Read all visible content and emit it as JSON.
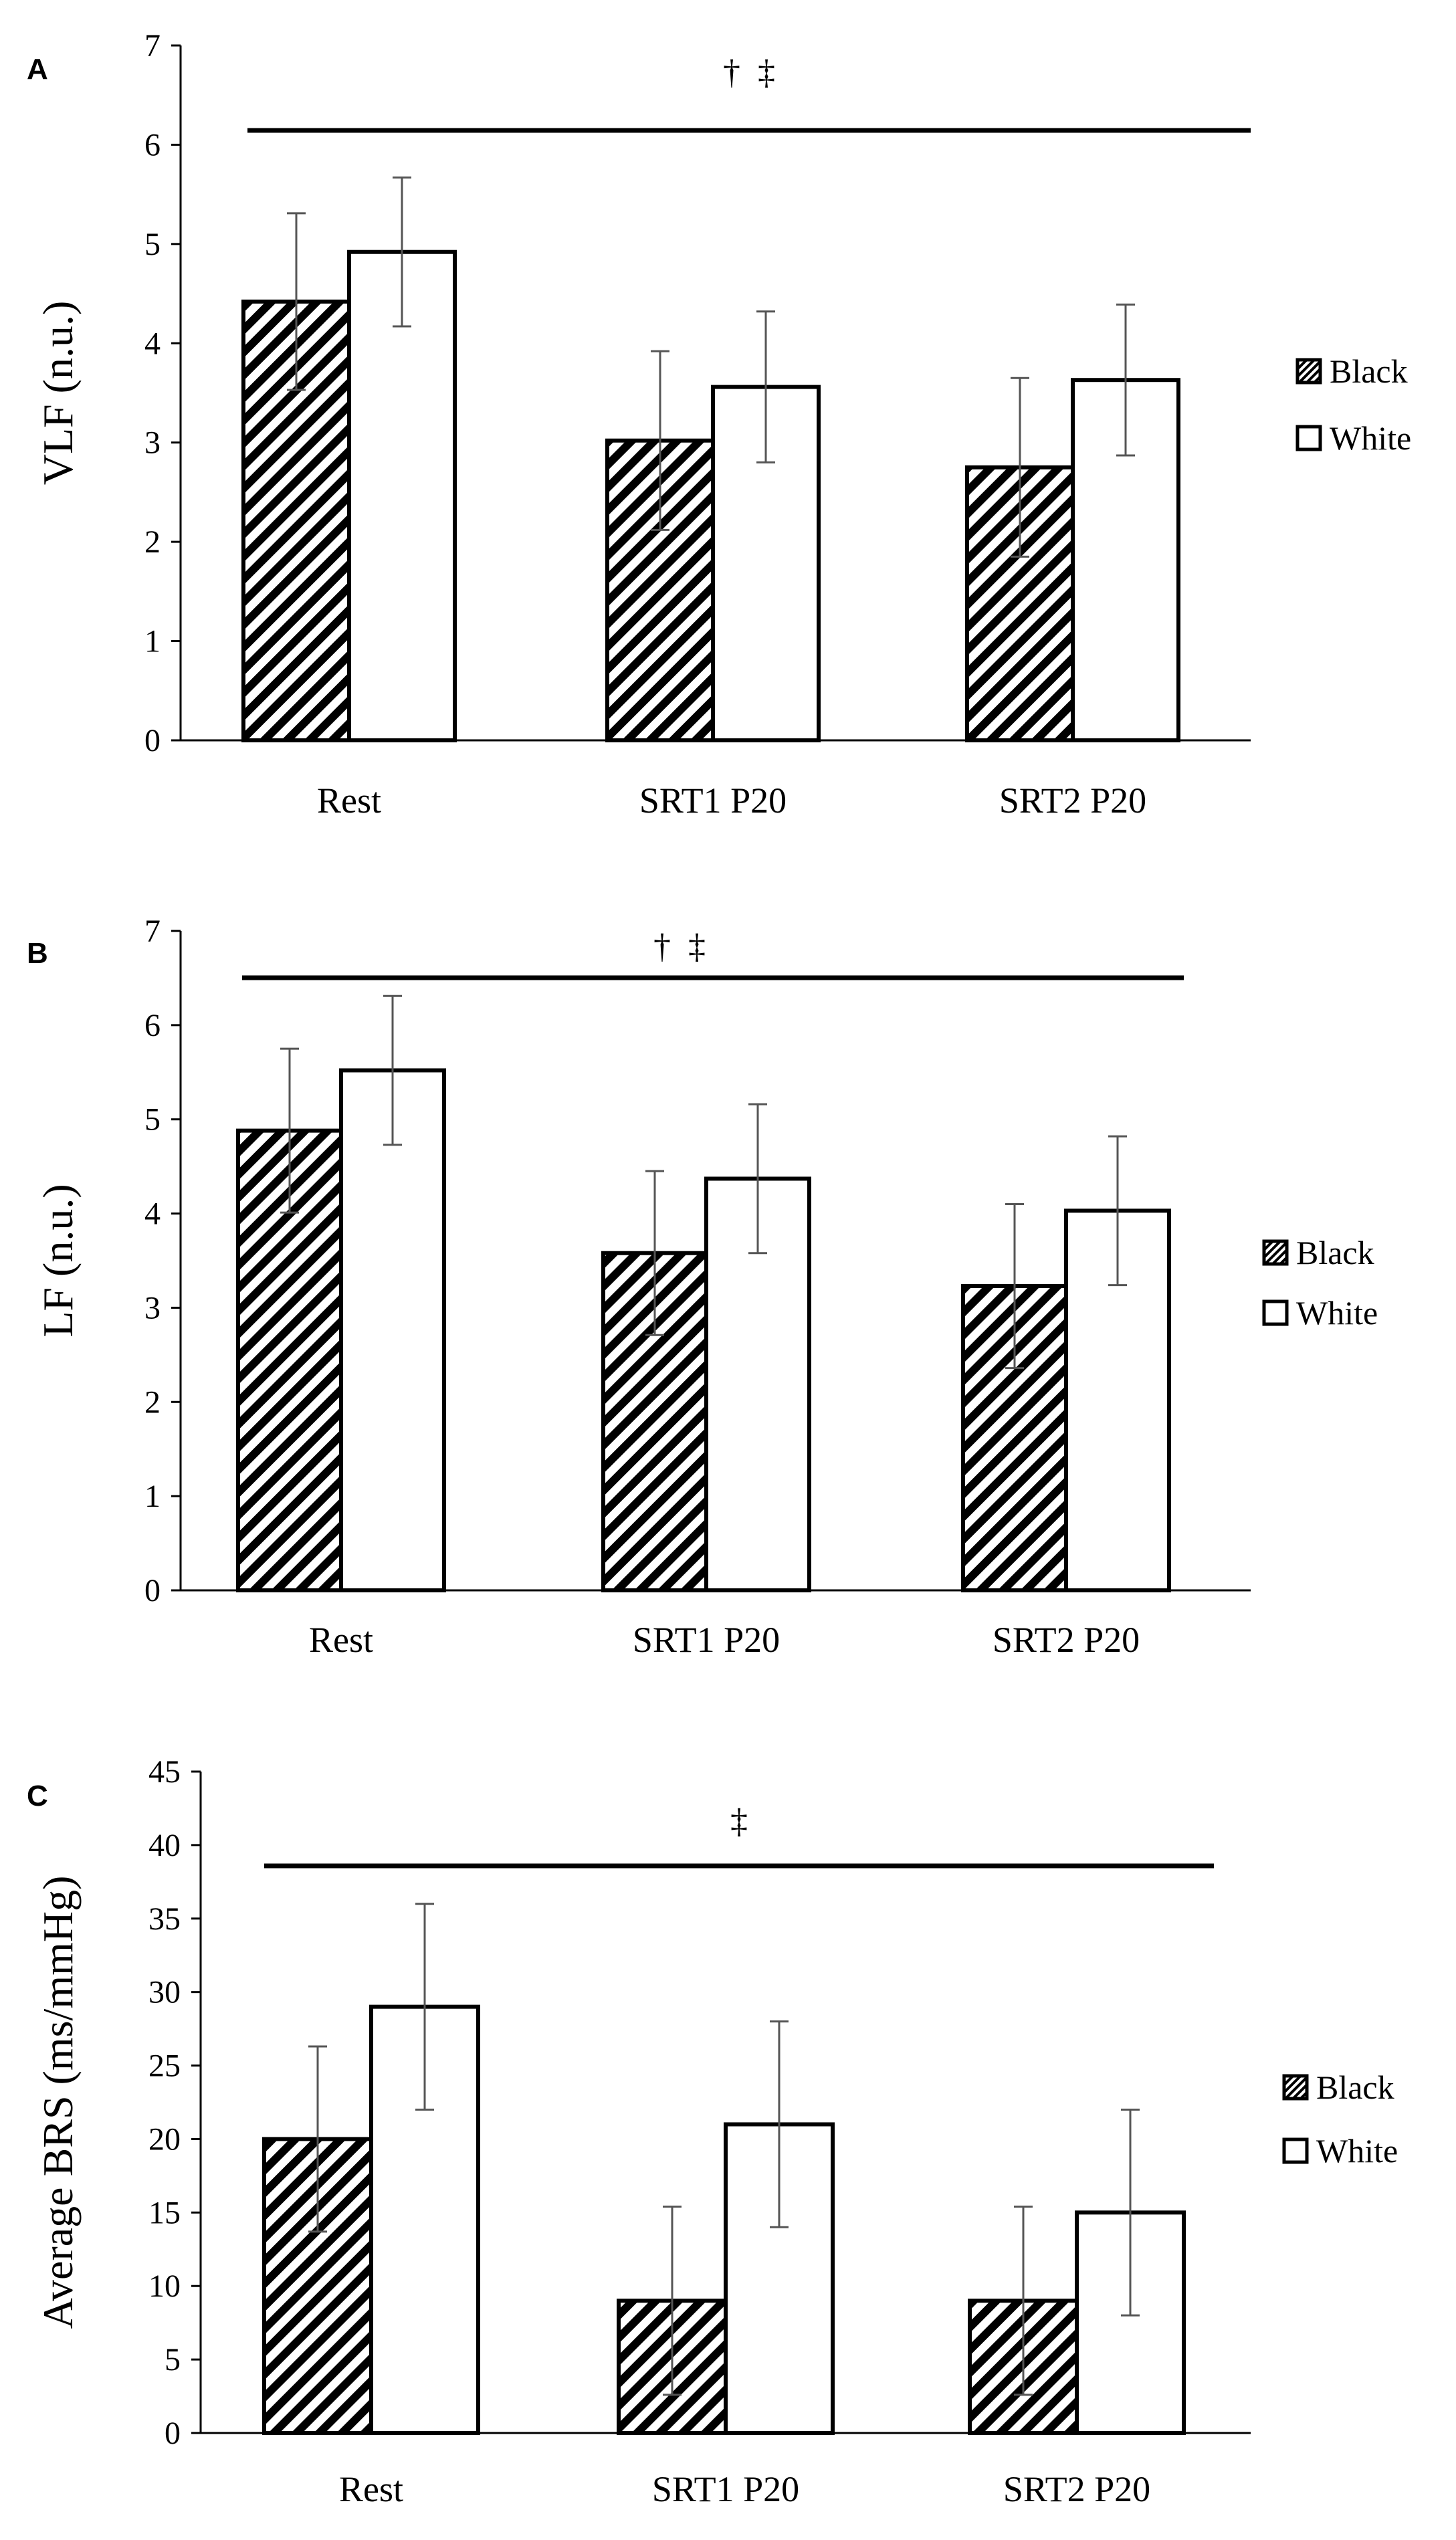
{
  "colors": {
    "black_series_fill": "hatched",
    "white_series_fill": "#ffffff",
    "outline": "#000000",
    "error_bar": "#555555"
  },
  "chart_data": [
    {
      "type": "bar",
      "panel": "A",
      "ylabel": "VLF (n.u.)",
      "ylim": [
        0,
        7
      ],
      "yticks": [
        "0",
        "1",
        "2",
        "3",
        "4",
        "5",
        "6",
        "7"
      ],
      "categories": [
        "Rest",
        "SRT1 P20",
        "SRT2 P20"
      ],
      "series": [
        {
          "name": "Black",
          "values": [
            4.42,
            3.02,
            2.75
          ],
          "errors": [
            0.89,
            0.9,
            0.9
          ]
        },
        {
          "name": "White",
          "values": [
            4.92,
            3.56,
            3.63
          ],
          "errors": [
            0.75,
            0.76,
            0.76
          ]
        }
      ],
      "annotation": "†  ‡",
      "legend": [
        "Black",
        "White"
      ],
      "legend_position": "right"
    },
    {
      "type": "bar",
      "panel": "B",
      "ylabel": "LF (n.u.)",
      "ylim": [
        0,
        7
      ],
      "yticks": [
        "0",
        "1",
        "2",
        "3",
        "4",
        "5",
        "6",
        "7"
      ],
      "categories": [
        "Rest",
        "SRT1 P20",
        "SRT2 P20"
      ],
      "series": [
        {
          "name": "Black",
          "values": [
            4.88,
            3.58,
            3.23
          ],
          "errors": [
            0.87,
            0.87,
            0.87
          ]
        },
        {
          "name": "White",
          "values": [
            5.52,
            4.37,
            4.03
          ],
          "errors": [
            0.79,
            0.79,
            0.79
          ]
        }
      ],
      "annotation": "†  ‡",
      "legend": [
        "Black",
        "White"
      ],
      "legend_position": "right"
    },
    {
      "type": "bar",
      "panel": "C",
      "ylabel": "Average BRS (ms/mmHg)",
      "ylim": [
        0,
        45
      ],
      "yticks": [
        "0",
        "5",
        "10",
        "15",
        "20",
        "25",
        "30",
        "35",
        "40",
        "45"
      ],
      "categories": [
        "Rest",
        "SRT1 P20",
        "SRT2 P20"
      ],
      "series": [
        {
          "name": "Black",
          "values": [
            20,
            9,
            9
          ],
          "errors": [
            6.3,
            6.4,
            6.4
          ]
        },
        {
          "name": "White",
          "values": [
            29,
            21,
            15
          ],
          "errors": [
            7,
            7,
            7
          ]
        }
      ],
      "annotation": "‡",
      "legend": [
        "Black",
        "White"
      ],
      "legend_position": "right"
    }
  ]
}
